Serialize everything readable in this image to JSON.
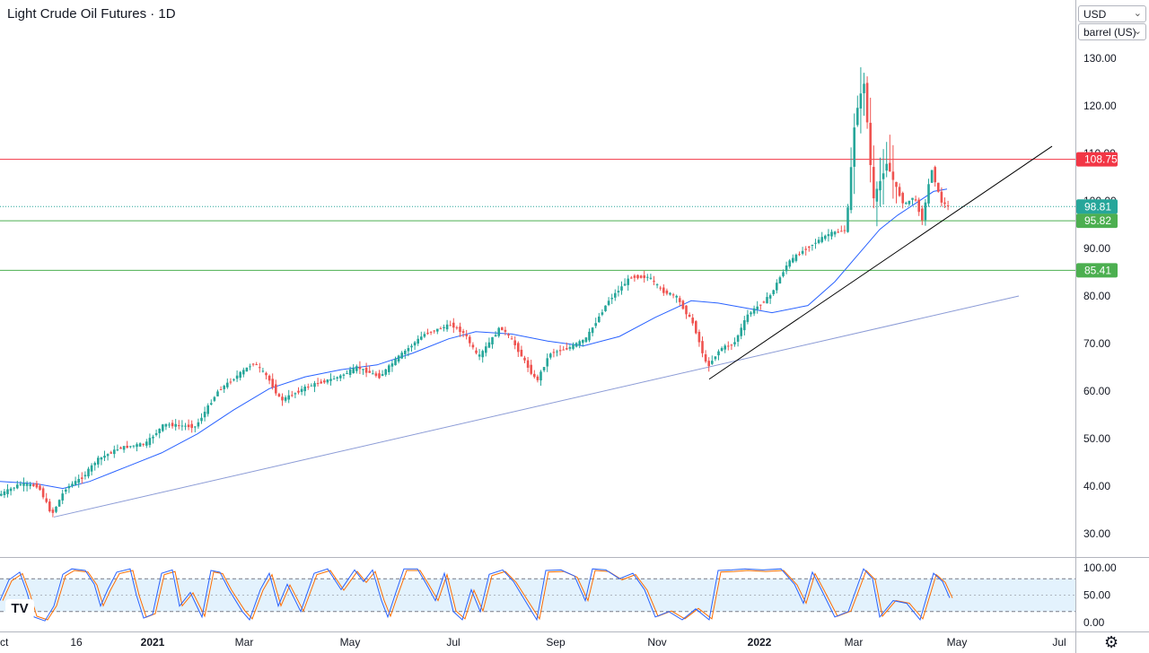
{
  "title": "Light Crude Oil Futures · 1D",
  "controls": {
    "currency": "USD",
    "unit": "barrel (US)"
  },
  "colors": {
    "up": "#26a69a",
    "down": "#ef5350",
    "ma": "#2962ff",
    "resistance": "#f23645",
    "support": "#4caf50",
    "trend": "#000000",
    "long_trend": "#8b9bd6",
    "stoch_k": "#2962ff",
    "stoch_d": "#ff6d00",
    "stoch_band": "#e3f2fd"
  },
  "chart_data": {
    "type": "candlestick",
    "title": "Light Crude Oil Futures · 1D",
    "x_axis_ticks": [
      "Oct",
      "16",
      "2021",
      "Mar",
      "May",
      "Jul",
      "Sep",
      "Nov",
      "2022",
      "Mar",
      "May",
      "Jul"
    ],
    "y_axis_ticks": [
      "130.00",
      "120.00",
      "110.00",
      "100.00",
      "90.00",
      "80.00",
      "70.00",
      "60.00",
      "50.00",
      "40.00",
      "30.00"
    ],
    "ylim": [
      22,
      140
    ],
    "price_path": [
      [
        0,
        38
      ],
      [
        25,
        40.5
      ],
      [
        45,
        40
      ],
      [
        60,
        34
      ],
      [
        75,
        39.5
      ],
      [
        95,
        42
      ],
      [
        110,
        45.5
      ],
      [
        135,
        48
      ],
      [
        165,
        49
      ],
      [
        185,
        53
      ],
      [
        220,
        52.5
      ],
      [
        245,
        60
      ],
      [
        285,
        66
      ],
      [
        300,
        63
      ],
      [
        315,
        58
      ],
      [
        345,
        61
      ],
      [
        380,
        63
      ],
      [
        400,
        65
      ],
      [
        425,
        63
      ],
      [
        445,
        67
      ],
      [
        475,
        72
      ],
      [
        505,
        74
      ],
      [
        520,
        72
      ],
      [
        535,
        67
      ],
      [
        560,
        73.5
      ],
      [
        575,
        70
      ],
      [
        600,
        62
      ],
      [
        615,
        68
      ],
      [
        635,
        69
      ],
      [
        655,
        71
      ],
      [
        680,
        79
      ],
      [
        705,
        84
      ],
      [
        725,
        84
      ],
      [
        740,
        81
      ],
      [
        755,
        80
      ],
      [
        775,
        74
      ],
      [
        790,
        65
      ],
      [
        805,
        69
      ],
      [
        820,
        70
      ],
      [
        835,
        76
      ],
      [
        860,
        80
      ],
      [
        880,
        87
      ],
      [
        900,
        90
      ],
      [
        925,
        93
      ],
      [
        945,
        94
      ],
      [
        955,
        118
      ],
      [
        965,
        125
      ],
      [
        975,
        100
      ],
      [
        990,
        108
      ],
      [
        1000,
        103
      ],
      [
        1010,
        99
      ],
      [
        1020,
        101
      ],
      [
        1030,
        96
      ],
      [
        1040,
        107
      ],
      [
        1050,
        100
      ],
      [
        1058,
        98.8
      ]
    ],
    "last_price": "98.81",
    "moving_average": [
      [
        0,
        41
      ],
      [
        40,
        40.5
      ],
      [
        70,
        39.5
      ],
      [
        100,
        41
      ],
      [
        140,
        44
      ],
      [
        180,
        47
      ],
      [
        220,
        51
      ],
      [
        260,
        56
      ],
      [
        300,
        60.5
      ],
      [
        340,
        63
      ],
      [
        380,
        64.5
      ],
      [
        420,
        65.5
      ],
      [
        460,
        68
      ],
      [
        500,
        71
      ],
      [
        530,
        72.5
      ],
      [
        570,
        72
      ],
      [
        610,
        70.5
      ],
      [
        650,
        69.5
      ],
      [
        690,
        71.5
      ],
      [
        730,
        75.5
      ],
      [
        770,
        79
      ],
      [
        800,
        78.5
      ],
      [
        830,
        77.5
      ],
      [
        860,
        76.5
      ],
      [
        900,
        78
      ],
      [
        930,
        83
      ],
      [
        955,
        88.5
      ],
      [
        980,
        94
      ],
      [
        1000,
        97
      ],
      [
        1020,
        99.5
      ],
      [
        1040,
        102
      ],
      [
        1055,
        102.5
      ]
    ],
    "horizontal_levels": [
      {
        "label": "108.75",
        "value": 108.75,
        "role": "resistance"
      },
      {
        "label": "95.82",
        "value": 95.82,
        "role": "support"
      },
      {
        "label": "85.41",
        "value": 85.41,
        "role": "support"
      }
    ],
    "trendlines": [
      {
        "name": "short-term",
        "from": [
          790,
          62.5
        ],
        "to": [
          1172,
          111.5
        ]
      },
      {
        "name": "long-term",
        "from": [
          60,
          33.5
        ],
        "to": [
          1135,
          80
        ]
      }
    ],
    "stochastic": {
      "y_ticks": [
        "100.00",
        "50.00",
        "0.00"
      ],
      "upper_band": 80,
      "lower_band": 20,
      "k_points": [
        [
          0,
          40
        ],
        [
          10,
          78
        ],
        [
          22,
          92
        ],
        [
          30,
          55
        ],
        [
          38,
          10
        ],
        [
          50,
          3
        ],
        [
          60,
          30
        ],
        [
          70,
          88
        ],
        [
          80,
          98
        ],
        [
          95,
          95
        ],
        [
          105,
          70
        ],
        [
          112,
          30
        ],
        [
          120,
          60
        ],
        [
          130,
          92
        ],
        [
          145,
          98
        ],
        [
          152,
          50
        ],
        [
          160,
          8
        ],
        [
          170,
          15
        ],
        [
          180,
          90
        ],
        [
          192,
          96
        ],
        [
          200,
          30
        ],
        [
          212,
          55
        ],
        [
          225,
          10
        ],
        [
          235,
          95
        ],
        [
          245,
          92
        ],
        [
          255,
          60
        ],
        [
          270,
          20
        ],
        [
          278,
          5
        ],
        [
          290,
          60
        ],
        [
          300,
          90
        ],
        [
          310,
          30
        ],
        [
          320,
          70
        ],
        [
          335,
          20
        ],
        [
          350,
          90
        ],
        [
          365,
          98
        ],
        [
          380,
          60
        ],
        [
          395,
          96
        ],
        [
          405,
          75
        ],
        [
          415,
          96
        ],
        [
          425,
          40
        ],
        [
          432,
          10
        ],
        [
          440,
          50
        ],
        [
          450,
          98
        ],
        [
          465,
          98
        ],
        [
          475,
          70
        ],
        [
          485,
          40
        ],
        [
          495,
          90
        ],
        [
          505,
          20
        ],
        [
          515,
          5
        ],
        [
          525,
          60
        ],
        [
          535,
          20
        ],
        [
          545,
          88
        ],
        [
          560,
          96
        ],
        [
          572,
          75
        ],
        [
          585,
          40
        ],
        [
          598,
          5
        ],
        [
          608,
          95
        ],
        [
          625,
          96
        ],
        [
          640,
          85
        ],
        [
          652,
          40
        ],
        [
          660,
          98
        ],
        [
          675,
          96
        ],
        [
          690,
          80
        ],
        [
          705,
          90
        ],
        [
          718,
          60
        ],
        [
          730,
          10
        ],
        [
          745,
          20
        ],
        [
          760,
          5
        ],
        [
          775,
          25
        ],
        [
          790,
          5
        ],
        [
          800,
          95
        ],
        [
          815,
          96
        ],
        [
          830,
          98
        ],
        [
          850,
          96
        ],
        [
          870,
          98
        ],
        [
          885,
          70
        ],
        [
          895,
          35
        ],
        [
          905,
          92
        ],
        [
          915,
          60
        ],
        [
          930,
          10
        ],
        [
          945,
          20
        ],
        [
          962,
          98
        ],
        [
          972,
          80
        ],
        [
          980,
          10
        ],
        [
          995,
          40
        ],
        [
          1010,
          35
        ],
        [
          1025,
          5
        ],
        [
          1040,
          90
        ],
        [
          1050,
          75
        ],
        [
          1058,
          45
        ]
      ]
    }
  }
}
